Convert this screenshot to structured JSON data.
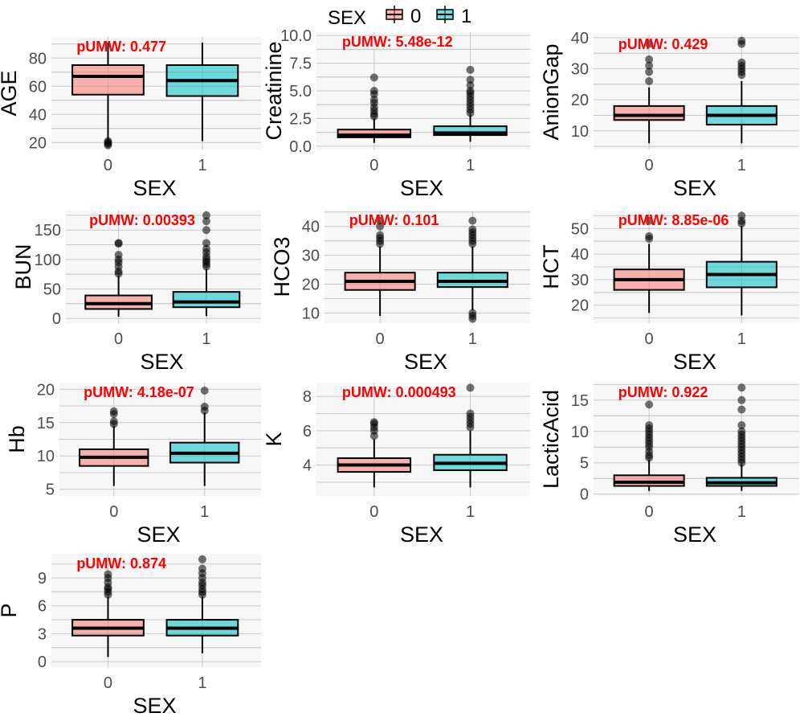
{
  "legend": {
    "title": "SEX",
    "items": [
      {
        "label": "0",
        "color": "#F8766D"
      },
      {
        "label": "1",
        "color": "#00BFC4"
      }
    ]
  },
  "colors": {
    "group_0": "#F8766D",
    "group_1": "#00BFC4",
    "pvalue_text": "#FF0000",
    "panel_bg": "#F7F7F7",
    "gridline": "#C8C8C8"
  },
  "chart_data": [
    {
      "type": "box",
      "title": "",
      "xlabel": "SEX",
      "ylabel": "AGE",
      "annotation": "pUMW: 0.477",
      "categories": [
        "0",
        "1"
      ],
      "ylim": [
        15,
        95
      ],
      "yticks": [
        20,
        40,
        60,
        80
      ],
      "boxes": [
        {
          "group": "0",
          "min": 21,
          "q1": 54,
          "median": 67,
          "q3": 75,
          "max": 91,
          "outliers": [
            18,
            19,
            20,
            21
          ]
        },
        {
          "group": "1",
          "min": 21,
          "q1": 53,
          "median": 64,
          "q3": 75,
          "max": 91,
          "outliers": []
        }
      ]
    },
    {
      "type": "box",
      "title": "",
      "xlabel": "SEX",
      "ylabel": "Creatinine",
      "annotation": "pUMW: 5.48e-12",
      "categories": [
        "0",
        "1"
      ],
      "ylim": [
        -0.3,
        10.3
      ],
      "yticks": [
        "0.0",
        "2.5",
        "5.0",
        "7.5",
        "10.0"
      ],
      "boxes": [
        {
          "group": "0",
          "min": 0.3,
          "q1": 0.8,
          "median": 1.0,
          "q3": 1.5,
          "max": 2.5,
          "outliers": [
            2.7,
            2.9,
            3.2,
            3.5,
            3.9,
            4.2,
            4.7,
            5.0,
            6.2
          ]
        },
        {
          "group": "1",
          "min": 0.4,
          "q1": 1.0,
          "median": 1.2,
          "q3": 1.8,
          "max": 2.9,
          "outliers": [
            3.0,
            3.3,
            3.6,
            3.9,
            4.2,
            4.5,
            4.8,
            5.0,
            5.5,
            6.0,
            6.9
          ]
        }
      ]
    },
    {
      "type": "box",
      "title": "",
      "xlabel": "SEX",
      "ylabel": "AnionGap",
      "annotation": "pUMW: 0.429",
      "categories": [
        "0",
        "1"
      ],
      "ylim": [
        4,
        41
      ],
      "yticks": [
        10,
        20,
        30,
        40
      ],
      "boxes": [
        {
          "group": "0",
          "min": 6,
          "q1": 13.5,
          "median": 15,
          "q3": 18,
          "max": 24,
          "outliers": [
            26,
            29,
            31,
            33,
            38
          ]
        },
        {
          "group": "1",
          "min": 6,
          "q1": 12,
          "median": 15,
          "q3": 18,
          "max": 26,
          "outliers": [
            28,
            29,
            30,
            31,
            32,
            38,
            39
          ]
        }
      ]
    },
    {
      "type": "box",
      "title": "",
      "xlabel": "SEX",
      "ylabel": "BUN",
      "annotation": "pUMW: 0.00393",
      "categories": [
        "0",
        "1"
      ],
      "ylim": [
        -8,
        183
      ],
      "yticks": [
        0,
        50,
        100,
        150
      ],
      "boxes": [
        {
          "group": "0",
          "min": 3,
          "q1": 16,
          "median": 25,
          "q3": 39,
          "max": 72,
          "outliers": [
            76,
            80,
            88,
            95,
            100,
            108,
            127,
            128
          ]
        },
        {
          "group": "1",
          "min": 4,
          "q1": 19,
          "median": 28,
          "q3": 45,
          "max": 84,
          "outliers": [
            88,
            92,
            96,
            100,
            105,
            112,
            118,
            128,
            150,
            165,
            175
          ]
        }
      ]
    },
    {
      "type": "box",
      "title": "",
      "xlabel": "SEX",
      "ylabel": "HCO3",
      "annotation": "pUMW: 0.101",
      "categories": [
        "0",
        "1"
      ],
      "ylim": [
        6.5,
        45.5
      ],
      "yticks": [
        10,
        20,
        30,
        40
      ],
      "boxes": [
        {
          "group": "0",
          "min": 9,
          "q1": 18,
          "median": 21,
          "q3": 24,
          "max": 33,
          "outliers": [
            34,
            35,
            36,
            37,
            40,
            42
          ]
        },
        {
          "group": "1",
          "min": 11,
          "q1": 19,
          "median": 21,
          "q3": 24,
          "max": 33,
          "outliers": [
            8,
            9,
            10,
            34,
            35,
            36,
            37,
            38,
            39,
            42
          ]
        }
      ]
    },
    {
      "type": "box",
      "title": "",
      "xlabel": "SEX",
      "ylabel": "HCT",
      "annotation": "pUMW: 8.85e-06",
      "categories": [
        "0",
        "1"
      ],
      "ylim": [
        13,
        57
      ],
      "yticks": [
        20,
        30,
        40,
        50
      ],
      "boxes": [
        {
          "group": "0",
          "min": 17,
          "q1": 26,
          "median": 30,
          "q3": 34,
          "max": 44,
          "outliers": [
            46,
            47,
            53
          ]
        },
        {
          "group": "1",
          "min": 16,
          "q1": 27,
          "median": 32,
          "q3": 37,
          "max": 51,
          "outliers": [
            52,
            53,
            55
          ]
        }
      ]
    },
    {
      "type": "box",
      "title": "",
      "xlabel": "SEX",
      "ylabel": "Hb",
      "annotation": "pUMW: 4.18e-07",
      "categories": [
        "0",
        "1"
      ],
      "ylim": [
        4,
        21
      ],
      "yticks": [
        5,
        10,
        15,
        20
      ],
      "boxes": [
        {
          "group": "0",
          "min": 5.5,
          "q1": 8.5,
          "median": 9.8,
          "q3": 11,
          "max": 14.5,
          "outliers": [
            14.8,
            15.2,
            16.3,
            16.7
          ]
        },
        {
          "group": "1",
          "min": 5.5,
          "q1": 9,
          "median": 10.4,
          "q3": 12,
          "max": 16.5,
          "outliers": [
            16.8,
            17.4,
            19.8
          ]
        }
      ]
    },
    {
      "type": "box",
      "title": "",
      "xlabel": "SEX",
      "ylabel": "K",
      "annotation": "pUMW: 0.000493",
      "categories": [
        "0",
        "1"
      ],
      "ylim": [
        2.2,
        8.8
      ],
      "yticks": [
        4,
        6,
        8
      ],
      "boxes": [
        {
          "group": "0",
          "min": 2.7,
          "q1": 3.6,
          "median": 4.0,
          "q3": 4.4,
          "max": 5.5,
          "outliers": [
            5.7,
            6.0,
            6.2,
            6.4,
            6.5
          ]
        },
        {
          "group": "1",
          "min": 2.7,
          "q1": 3.7,
          "median": 4.1,
          "q3": 4.6,
          "max": 6.0,
          "outliers": [
            6.2,
            6.4,
            6.6,
            6.8,
            7.0,
            8.5
          ]
        }
      ]
    },
    {
      "type": "box",
      "title": "",
      "xlabel": "SEX",
      "ylabel": "LacticAcid",
      "annotation": "pUMW: 0.922",
      "categories": [
        "0",
        "1"
      ],
      "ylim": [
        -0.3,
        17.8
      ],
      "yticks": [
        0,
        5,
        10,
        15
      ],
      "boxes": [
        {
          "group": "0",
          "min": 0.5,
          "q1": 1.3,
          "median": 1.9,
          "q3": 3.0,
          "max": 5.5,
          "outliers": [
            5.8,
            6.2,
            6.8,
            7.5,
            8.0,
            8.5,
            9.0,
            9.5,
            10.0,
            10.5,
            11.0,
            14.3
          ]
        },
        {
          "group": "1",
          "min": 0.5,
          "q1": 1.3,
          "median": 1.8,
          "q3": 2.6,
          "max": 4.8,
          "outliers": [
            5.0,
            5.5,
            6.0,
            6.5,
            7.0,
            7.5,
            8.0,
            8.5,
            9.0,
            9.5,
            10.0,
            11.0,
            13.5,
            15.0,
            17.0
          ]
        }
      ]
    },
    {
      "type": "box",
      "title": "",
      "xlabel": "SEX",
      "ylabel": "P",
      "annotation": "pUMW: 0.874",
      "categories": [
        "0",
        "1"
      ],
      "ylim": [
        -0.6,
        11.6
      ],
      "yticks": [
        0,
        3,
        6,
        9
      ],
      "boxes": [
        {
          "group": "0",
          "min": 0.5,
          "q1": 2.8,
          "median": 3.6,
          "q3": 4.5,
          "max": 7.0,
          "outliers": [
            7.2,
            7.5,
            7.8,
            8.0,
            8.5,
            9.0,
            9.4
          ]
        },
        {
          "group": "1",
          "min": 0.9,
          "q1": 2.8,
          "median": 3.6,
          "q3": 4.5,
          "max": 7.0,
          "outliers": [
            7.2,
            7.5,
            7.8,
            8.2,
            8.5,
            9.0,
            9.5,
            10.0,
            11.0
          ]
        }
      ]
    }
  ]
}
